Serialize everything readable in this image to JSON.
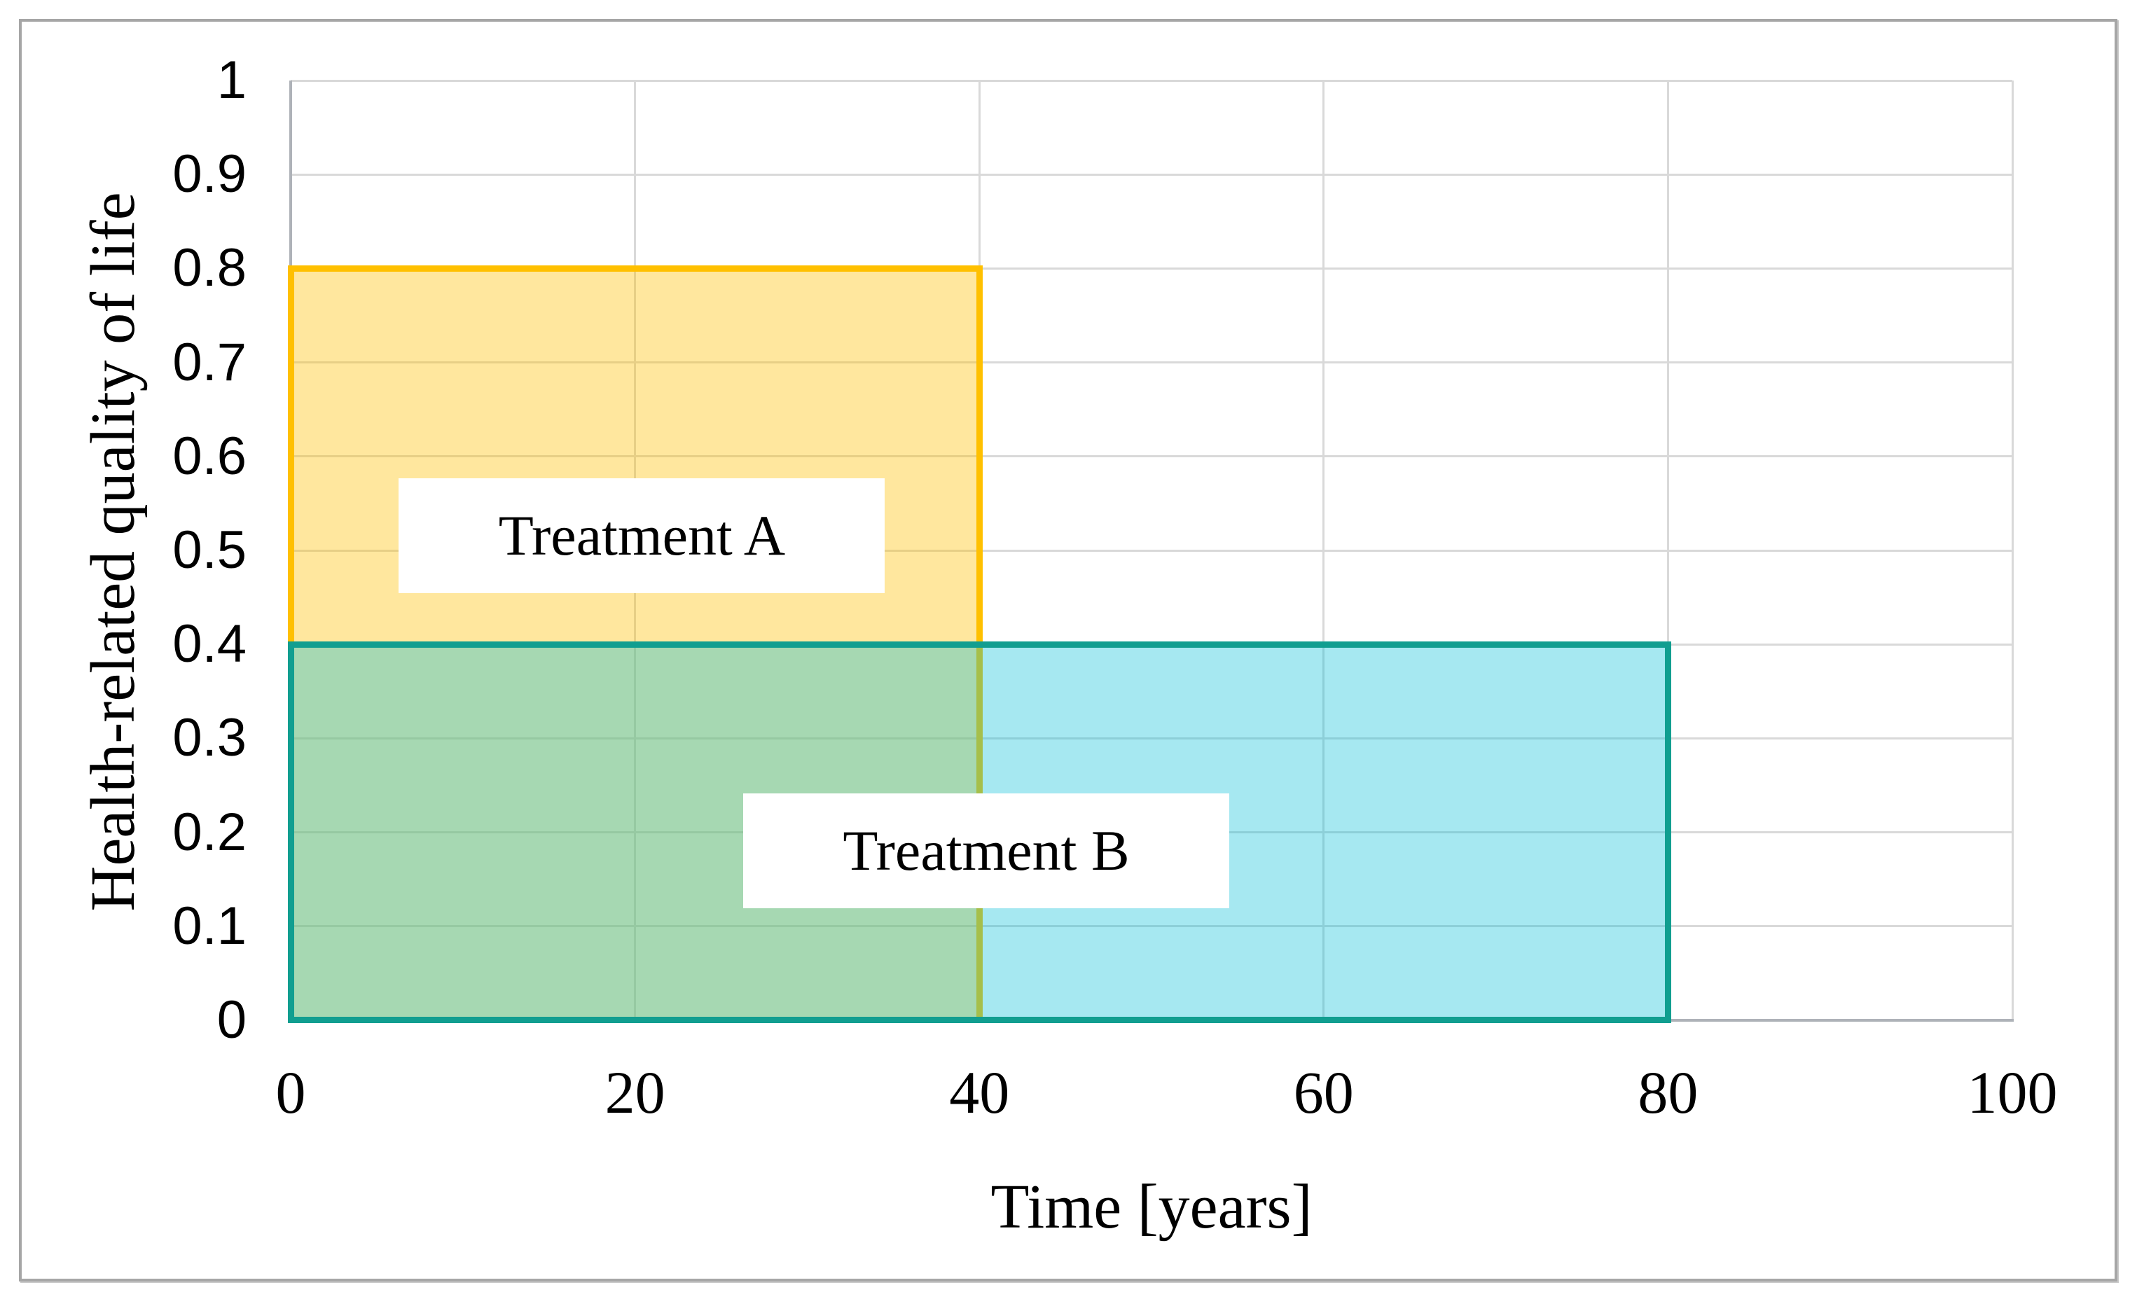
{
  "chart_data": {
    "type": "area",
    "title": "",
    "xlabel": "Time [years]",
    "ylabel": "Health-related quality of life",
    "xlim": [
      0,
      100
    ],
    "ylim": [
      0,
      1
    ],
    "x_ticks": [
      {
        "value": 0,
        "label": "0"
      },
      {
        "value": 20,
        "label": "20"
      },
      {
        "value": 40,
        "label": "40"
      },
      {
        "value": 60,
        "label": "60"
      },
      {
        "value": 80,
        "label": "80"
      },
      {
        "value": 100,
        "label": "100"
      }
    ],
    "y_ticks": [
      {
        "value": 1,
        "label": "1"
      },
      {
        "value": 0.9,
        "label": "0.9"
      },
      {
        "value": 0.8,
        "label": "0.8"
      },
      {
        "value": 0.7,
        "label": "0.7"
      },
      {
        "value": 0.6,
        "label": "0.6"
      },
      {
        "value": 0.5,
        "label": "0.5"
      },
      {
        "value": 0.4,
        "label": "0.4"
      },
      {
        "value": 0.3,
        "label": "0.3"
      },
      {
        "value": 0.2,
        "label": "0.2"
      },
      {
        "value": 0.1,
        "label": "0.1"
      },
      {
        "value": 0,
        "label": "0"
      }
    ],
    "grid": true,
    "legend_position": "none",
    "series": [
      {
        "name": "Treatment A",
        "shape": "rect",
        "x0": 0,
        "x1": 40,
        "y0": 0,
        "y1": 0.8,
        "fill": "rgba(255,192,0,0.38)",
        "border_color": "#FFC000"
      },
      {
        "name": "Treatment B",
        "shape": "rect",
        "x0": 0,
        "x1": 80,
        "y0": 0,
        "y1": 0.4,
        "fill": "rgba(0,190,215,0.35)",
        "border_color": "#119E90"
      }
    ],
    "annotations": [
      {
        "text": "Treatment A",
        "x": 20.4,
        "y": 0.516
      },
      {
        "text": "Treatment B",
        "x": 40.4,
        "y": 0.18
      }
    ]
  },
  "colors": {
    "figure_border": "#A6A6A6",
    "gridline": "#D9D9D9",
    "axis_line": "#AEB2B8",
    "annotation_background": "#FFFFFF",
    "text": "#000000"
  }
}
